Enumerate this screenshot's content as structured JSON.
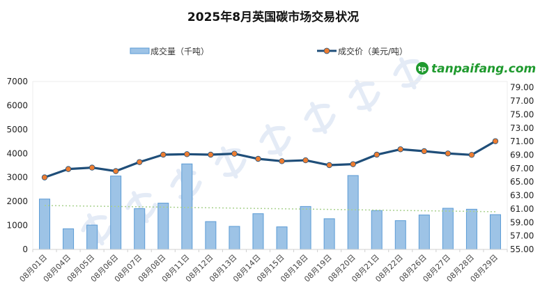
{
  "chart_data": {
    "type": "bar+line",
    "title": "2025年8月英国碳市场交易状况",
    "categories": [
      "08月01日",
      "08月04日",
      "08月05日",
      "08月06日",
      "08月07日",
      "08月08日",
      "08月11日",
      "08月12日",
      "08月13日",
      "08月14日",
      "08月15日",
      "08月18日",
      "08月19日",
      "08月20日",
      "08月21日",
      "08月22日",
      "08月26日",
      "08月27日",
      "08月28日",
      "08月29日"
    ],
    "series": [
      {
        "name": "成交量（千吨）",
        "type": "bar",
        "axis": "left",
        "color": "#9dc3e6",
        "edge": "#5b9bd5",
        "values": [
          2100,
          860,
          1015,
          3060,
          1700,
          1930,
          3565,
          1160,
          960,
          1490,
          940,
          1790,
          1280,
          3080,
          1620,
          1200,
          1435,
          1715,
          1675,
          1450
        ]
      },
      {
        "name": "成交价（美元/吨）",
        "type": "line",
        "axis": "right",
        "color": "#1f4e79",
        "marker": "#ed7d31",
        "values": [
          65.68,
          66.92,
          67.13,
          66.61,
          67.95,
          69.05,
          69.12,
          69.05,
          69.19,
          68.43,
          68.09,
          68.22,
          67.5,
          67.64,
          69.05,
          69.85,
          69.57,
          69.23,
          69.02,
          71.05
        ]
      }
    ],
    "trendline": {
      "of": "成交量（千吨）",
      "type": "linear",
      "color": "#a9d18e",
      "style": "dotted"
    },
    "left_axis": {
      "range": [
        0,
        7000
      ],
      "ticks": [
        "0",
        "1000",
        "2000",
        "3000",
        "4000",
        "5000",
        "6000",
        "7000"
      ]
    },
    "right_axis": {
      "range": [
        55,
        79
      ],
      "ticks": [
        "55.00",
        "57.00",
        "59.00",
        "61.00",
        "63.00",
        "65.00",
        "67.00",
        "69.00",
        "71.00",
        "73.00",
        "75.00",
        "77.00",
        "79.00"
      ]
    },
    "legend_placement": "top",
    "grid": false
  },
  "watermark": "复旦大学版权所有",
  "logo": "tanpaifang.com"
}
